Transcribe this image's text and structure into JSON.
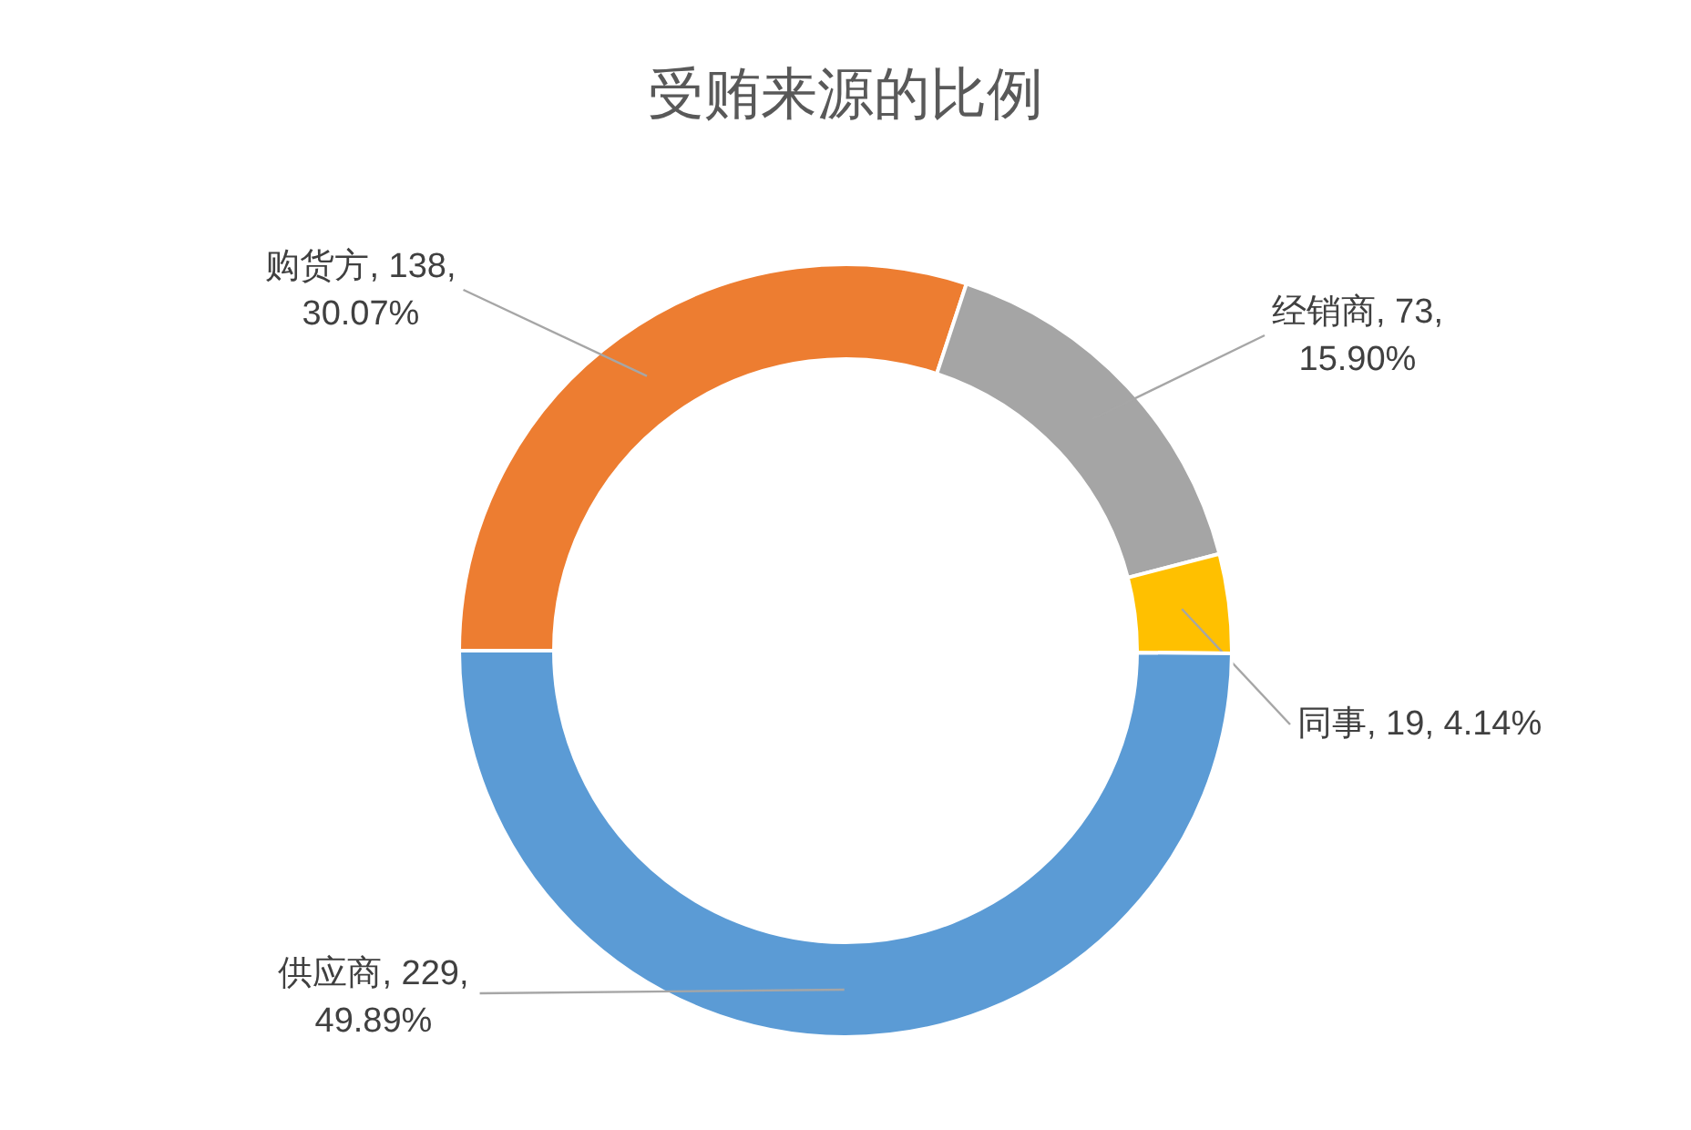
{
  "chart_data": {
    "type": "donut",
    "title": "受贿来源的比例",
    "categories": [
      "购货方",
      "经销商",
      "同事",
      "供应商"
    ],
    "values": [
      30.07,
      15.9,
      4.14,
      49.89
    ],
    "value_labels": [
      "138, 30.07%",
      "73, 15.90%",
      "19, 4.14%",
      "229, 49.89%"
    ],
    "colors": [
      "#ed7d31",
      "#a5a5a5",
      "#ffc000",
      "#5b9bd5"
    ]
  }
}
